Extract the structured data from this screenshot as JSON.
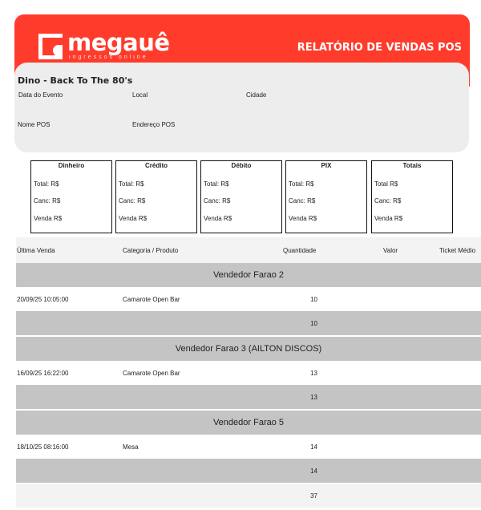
{
  "header": {
    "brand": "megauê",
    "brand_sub": "ingressos online",
    "title": "RELATÓRIO DE VENDAS POS",
    "color": "#ff3c2c"
  },
  "event": {
    "name": "Dino - Back To The 80's",
    "labels": {
      "date": "Data do Evento",
      "local": "Local",
      "city": "Cidade",
      "pos_name": "Nome POS",
      "pos_address": "Endereço POS"
    }
  },
  "payments": [
    {
      "title": "Dinheiro",
      "total": "Total:  R$",
      "canc": "Canc:  R$",
      "venda": "Venda R$"
    },
    {
      "title": "Crédito",
      "total": "Total:  R$",
      "canc": "Canc:  R$",
      "venda": "Venda R$"
    },
    {
      "title": "Débito",
      "total": "Total:  R$",
      "canc": "Canc:  R$",
      "venda": "Venda R$"
    },
    {
      "title": "PIX",
      "total": "Total:  R$",
      "canc": "Canc:  R$",
      "venda": "Venda R$"
    },
    {
      "title": "Totais",
      "total": "Total     R$",
      "canc": "Canc:  R$",
      "venda": "Venda R$"
    }
  ],
  "table": {
    "columns": [
      "Última Venda",
      "Categoria / Produto",
      "Quantidade",
      "Valor",
      "Ticket Médio"
    ],
    "groups": [
      {
        "seller": "Vendedor Farao 2",
        "rows": [
          {
            "date": "20/09/25 10:05:00",
            "product": "Camarote Open Bar",
            "qty": "10"
          }
        ],
        "subtotal": "10"
      },
      {
        "seller": "Vendedor Farao 3 (AILTON DISCOS)",
        "rows": [
          {
            "date": "16/09/25 16:22:00",
            "product": "Camarote Open Bar",
            "qty": "13"
          }
        ],
        "subtotal": "13"
      },
      {
        "seller": "Vendedor Farao 5",
        "rows": [
          {
            "date": "18/10/25 08:16:00",
            "product": "Mesa",
            "qty": "14"
          }
        ],
        "subtotal": "14"
      }
    ],
    "total": "37"
  }
}
